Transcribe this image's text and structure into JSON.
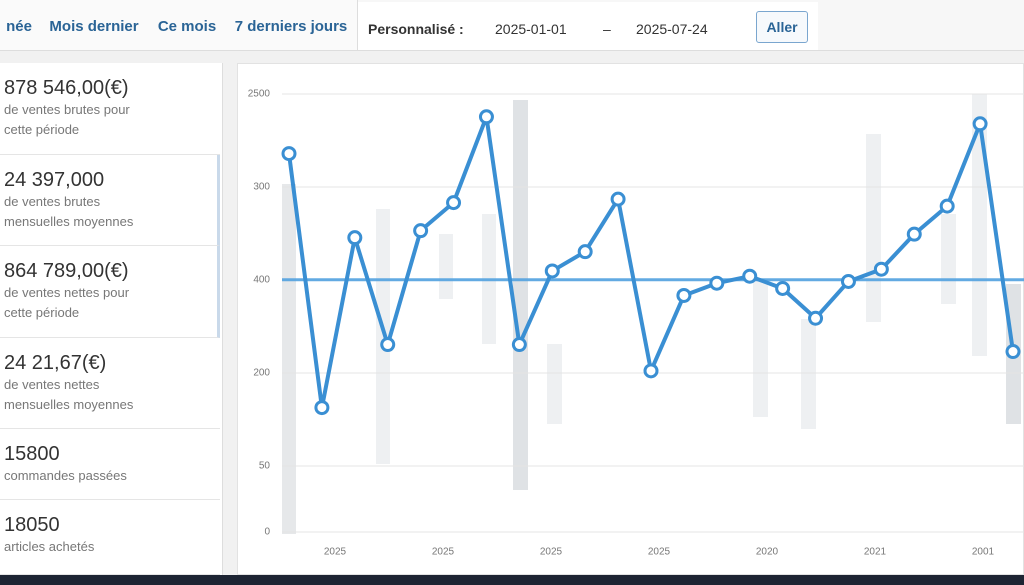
{
  "tabs": [
    "née",
    "Mois dernier",
    "Ce mois",
    "7 derniers jours"
  ],
  "custom": {
    "label": "Personnalisé :",
    "from": "2025-01-01",
    "separator": "–",
    "to": "2025-07-24",
    "button": "Aller"
  },
  "stats": [
    {
      "value": "878 546,00(€)",
      "label": "de ventes brutes pour cette période"
    },
    {
      "value": "24 397,000",
      "label": "de ventes brutes mensuelles moyennes"
    },
    {
      "value": "864 789,00(€)",
      "label": "de ventes nettes pour cette période"
    },
    {
      "value": "24 21,67(€)",
      "label": "de ventes nettes mensuelles moyennes"
    },
    {
      "value": "15800",
      "label": "commandes passées"
    },
    {
      "value": "18050",
      "label": "articles achetés"
    }
  ],
  "chart_data": {
    "type": "line",
    "color": "#3a8fd3",
    "values": [
      2160,
      710,
      1680,
      1070,
      1720,
      1880,
      2370,
      1070,
      1490,
      1600,
      1900,
      920,
      1350,
      1420,
      1460,
      1390,
      1220,
      1430,
      1500,
      1700,
      1860,
      2330,
      1030
    ],
    "average": 1440,
    "ylim": [
      0,
      2500
    ],
    "yticks": [
      2500,
      0
    ],
    "extra_y_labels": [
      "300",
      "400",
      "200",
      "50"
    ],
    "x_labels": [
      "2025",
      "2025",
      "2025",
      "2025",
      "2020",
      "2021",
      "2001"
    ],
    "grid": true
  }
}
